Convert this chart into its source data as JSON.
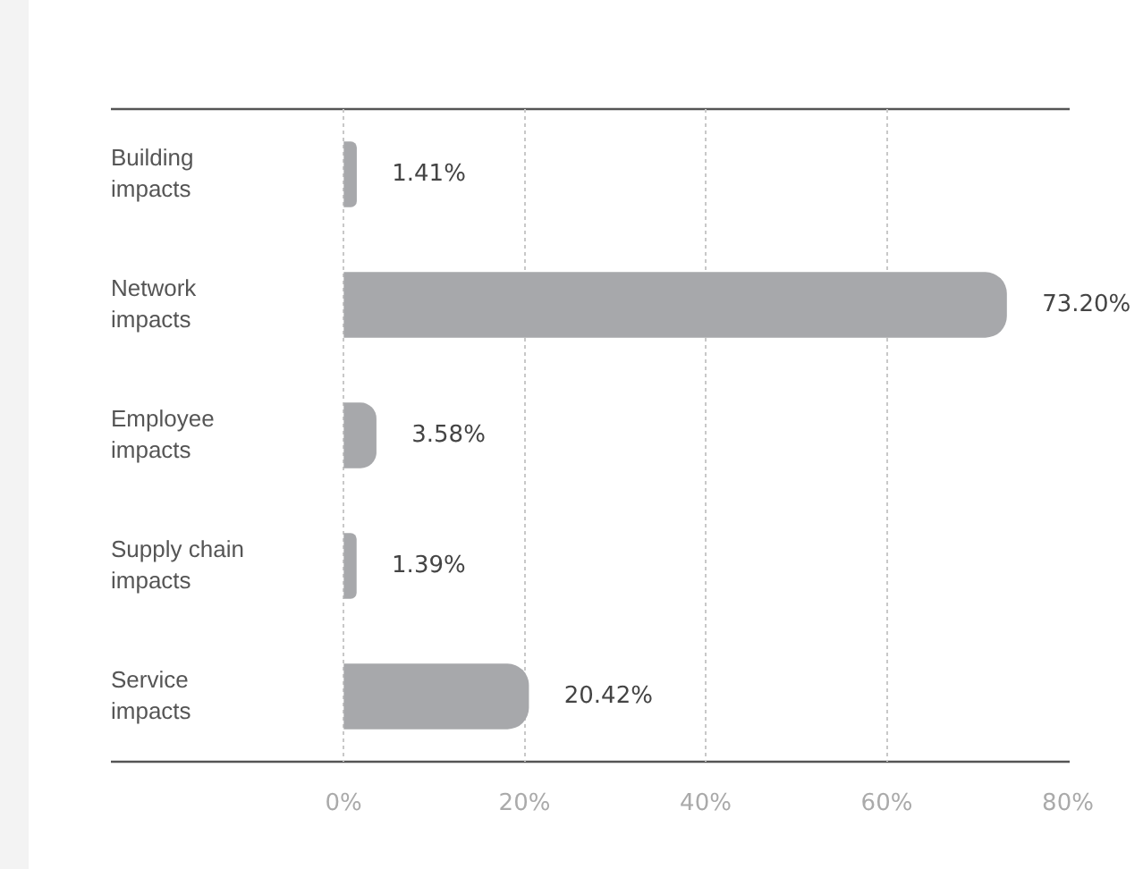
{
  "chart_data": {
    "type": "bar",
    "orientation": "horizontal",
    "categories": [
      "Building impacts",
      "Network impacts",
      "Employee impacts",
      "Supply chain impacts",
      "Service impacts"
    ],
    "values": [
      1.41,
      73.2,
      3.58,
      1.39,
      20.42
    ],
    "value_labels": [
      "1.41%",
      "73.20%",
      "3.58%",
      "1.39%",
      "20.42%"
    ],
    "color": "#a7a8ab",
    "xlim": [
      0,
      80
    ],
    "xticks": [
      {
        "value": 0,
        "label": "0%"
      },
      {
        "value": 20,
        "label": "20%"
      },
      {
        "value": 40,
        "label": "40%"
      },
      {
        "value": 60,
        "label": "60%"
      },
      {
        "value": 80,
        "label": "80%"
      }
    ],
    "grid": "x",
    "legend": false
  }
}
